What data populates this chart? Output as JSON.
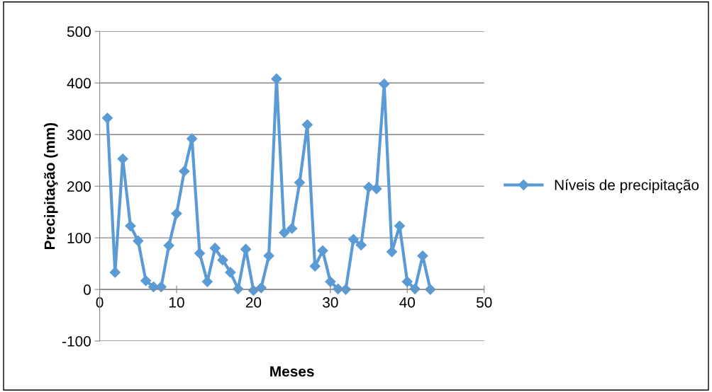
{
  "chart_data": {
    "type": "line",
    "xlabel": "Meses",
    "ylabel": "Precipitação (mm)",
    "x": [
      1,
      2,
      3,
      4,
      5,
      6,
      7,
      8,
      9,
      10,
      11,
      12,
      13,
      14,
      15,
      16,
      17,
      18,
      19,
      20,
      21,
      22,
      23,
      24,
      25,
      26,
      27,
      28,
      29,
      30,
      31,
      32,
      33,
      34,
      35,
      36,
      37,
      38,
      39,
      40,
      41,
      42,
      43
    ],
    "series": [
      {
        "name": "Níveis de precipitação",
        "color": "#5b9bd5",
        "values": [
          332,
          33,
          253,
          123,
          94,
          17,
          5,
          5,
          85,
          147,
          229,
          292,
          70,
          15,
          80,
          57,
          33,
          1,
          78,
          -2,
          3,
          65,
          408,
          110,
          118,
          207,
          319,
          45,
          75,
          15,
          1,
          0,
          97,
          86,
          198,
          195,
          398,
          73,
          123,
          15,
          1,
          65,
          0
        ]
      }
    ],
    "xlim": [
      0,
      50
    ],
    "xticks": [
      0,
      10,
      20,
      30,
      40,
      50
    ],
    "ylim": [
      -100,
      500
    ],
    "yticks": [
      -100,
      0,
      100,
      200,
      300,
      400,
      500
    ],
    "grid": "y",
    "legend": "right",
    "marker": "diamond",
    "line_style": "solid"
  }
}
